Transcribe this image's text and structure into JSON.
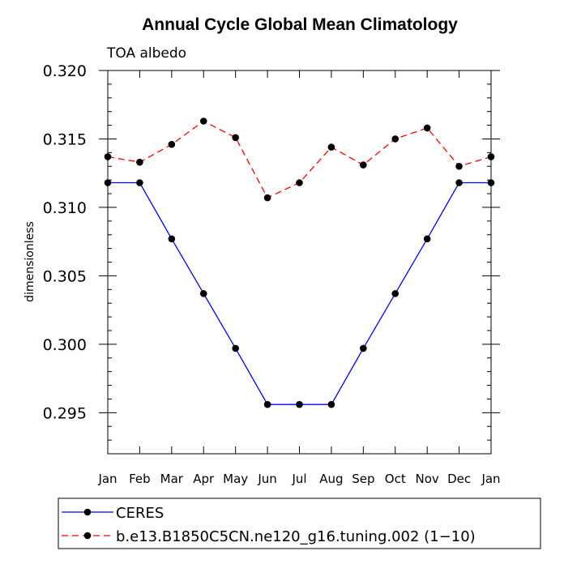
{
  "chart_data": {
    "type": "line",
    "title": "Annual Cycle Global Mean Climatology",
    "subtitle": "TOA albedo",
    "xlabel": "",
    "ylabel": "dimensionless",
    "categories": [
      "Jan",
      "Feb",
      "Mar",
      "Apr",
      "May",
      "Jun",
      "Jul",
      "Aug",
      "Sep",
      "Oct",
      "Nov",
      "Dec",
      "Jan"
    ],
    "ylim": [
      0.292,
      0.32
    ],
    "yticks": [
      0.295,
      0.3,
      0.305,
      0.31,
      0.315,
      0.32
    ],
    "ytick_labels": [
      "0.295",
      "0.300",
      "0.305",
      "0.310",
      "0.315",
      "0.320"
    ],
    "series": [
      {
        "name": "CERES",
        "color": "#0000ff",
        "dash": "solid",
        "values": [
          0.3118,
          0.3118,
          0.3077,
          0.3037,
          0.2997,
          0.2956,
          0.2956,
          0.2956,
          0.2997,
          0.3037,
          0.3077,
          0.3118,
          0.3118
        ]
      },
      {
        "name": "b.e13.B1850C5CN.ne120_g16.tuning.002 (1−10)",
        "color": "#ff0000",
        "dash": "dashed",
        "values": [
          0.3137,
          0.3133,
          0.3146,
          0.3163,
          0.3151,
          0.3107,
          0.3118,
          0.3144,
          0.3131,
          0.315,
          0.3158,
          0.313,
          0.3137
        ]
      }
    ],
    "legend_position": "bottom"
  }
}
